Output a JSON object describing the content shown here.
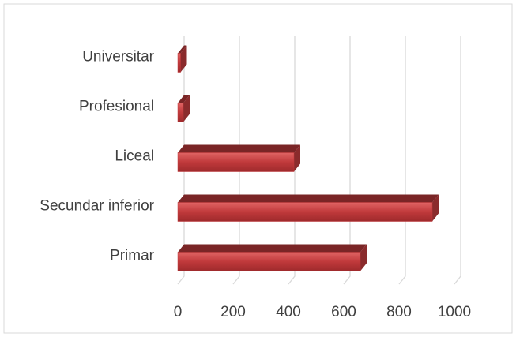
{
  "chart_data": {
    "type": "bar3d_horizontal",
    "categories": [
      "Primar",
      "Secundar inferior",
      "Liceal",
      "Profesional",
      "Universitar"
    ],
    "values": [
      660,
      920,
      420,
      20,
      10
    ],
    "color": "#c0393b",
    "xlim": [
      0,
      1000
    ],
    "xticks": [
      0,
      200,
      400,
      600,
      800,
      1000
    ],
    "grid": true
  }
}
